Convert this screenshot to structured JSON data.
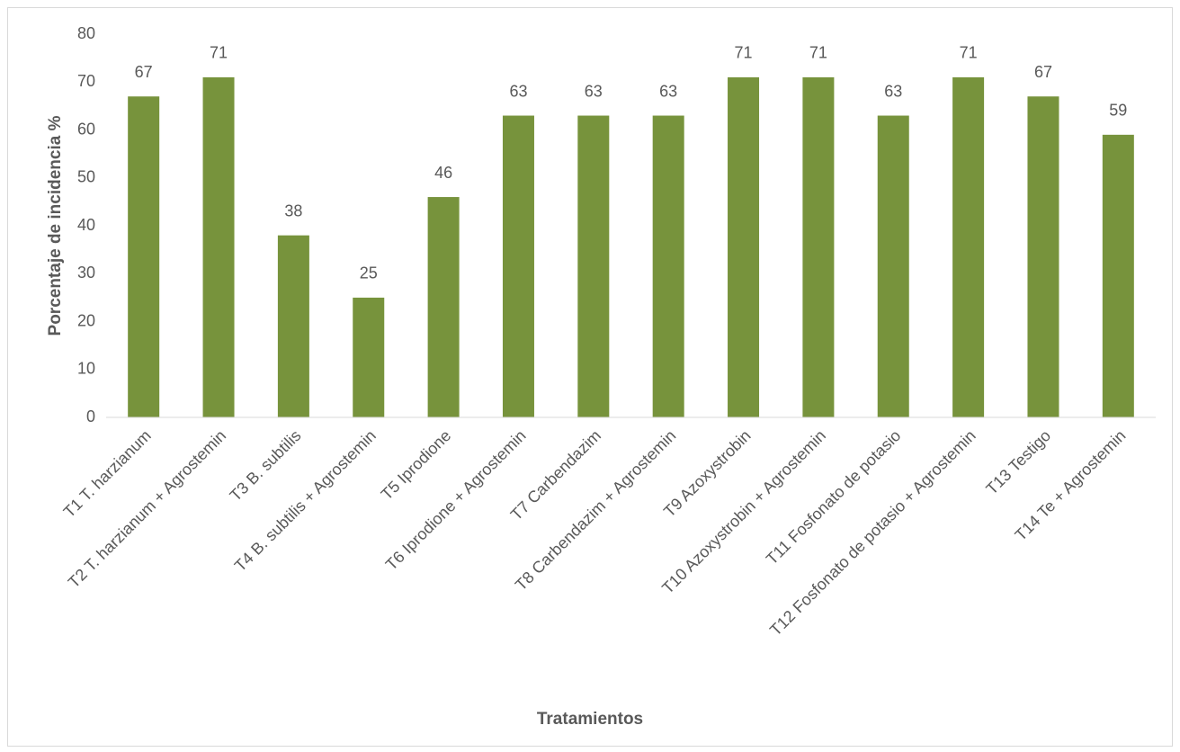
{
  "chart_data": {
    "type": "bar",
    "x_label": "Tratamientos",
    "y_label": "Porcentaje de incidencia %",
    "categories": [
      "T1  T. harzianum",
      "T2 T. harzianum + Agrostemin",
      "T3 B. subtilis",
      "T4 B. subtilis + Agrostemin",
      "T5 Iprodione",
      "T6 Iprodione + Agrostemin",
      "T7 Carbendazim",
      "T8 Carbendazim + Agrostemin",
      "T9 Azoxystrobin",
      "T10 Azoxystrobin + Agrostemin",
      "T11 Fosfonato de potasio",
      "T12 Fosfonato de potasio + Agrostemin",
      "T13 Testigo",
      "T14 Te + Agrostemin"
    ],
    "values": [
      67,
      71,
      38,
      25,
      46,
      63,
      63,
      63,
      71,
      71,
      63,
      71,
      67,
      59
    ],
    "color": "#77933c",
    "ylim": [
      0,
      80
    ],
    "yticks": [
      0,
      10,
      20,
      30,
      40,
      50,
      60,
      70,
      80
    ],
    "grid": false
  }
}
